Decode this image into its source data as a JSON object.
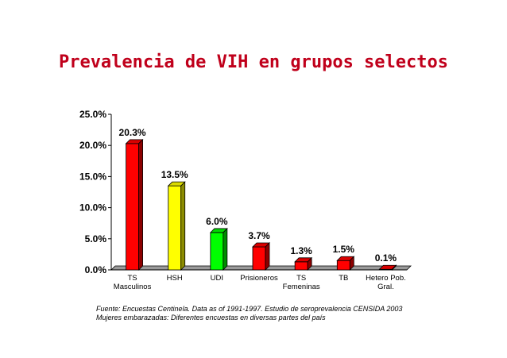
{
  "chart_data": {
    "type": "bar",
    "title": "Prevalencia de VIH en grupos selectos",
    "categories": [
      "TS\nMasculinos",
      "HSH",
      "UDI",
      "Prisioneros",
      "TS\nFemeninas",
      "TB",
      "Hetero Pob.\nGral."
    ],
    "values": [
      20.3,
      13.5,
      6.0,
      3.7,
      1.3,
      1.5,
      0.1
    ],
    "value_labels": [
      "20.3%",
      "13.5%",
      "6.0%",
      "3.7%",
      "1.3%",
      "1.5%",
      "0.1%"
    ],
    "bar_colors": [
      "#ff0000",
      "#ffff00",
      "#00ff00",
      "#ff0000",
      "#ff0000",
      "#ff0000",
      "#ff0000"
    ],
    "ylim": [
      0,
      25
    ],
    "yticks": [
      0,
      5,
      10,
      15,
      20,
      25
    ],
    "ytick_labels": [
      "0.0%",
      "5.0%",
      "10.0%",
      "15.0%",
      "20.0%",
      "25.0%"
    ],
    "xlabel": "",
    "ylabel": "",
    "grid": false,
    "legend": false,
    "three_d": true
  },
  "source": {
    "line1": "Fuente: Encuestas Centinela. Data as of 1991-1997. Estudio de seroprevalencia CENSIDA 2003",
    "line2": "Mujeres embarazadas: Diferentes encuestas en diversas partes del país"
  },
  "colors": {
    "title": "#c0001b"
  }
}
